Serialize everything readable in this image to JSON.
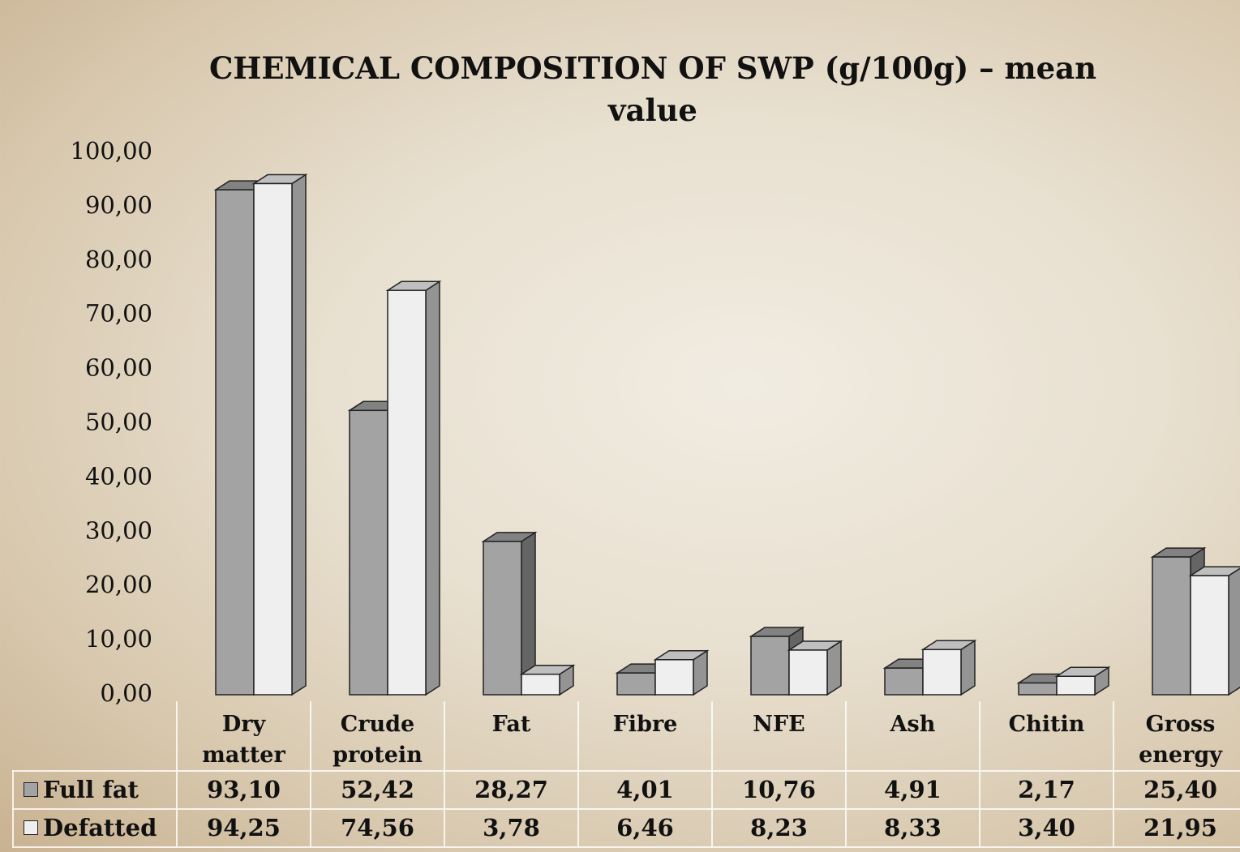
{
  "chart_data": {
    "type": "bar3d",
    "title": "CHEMICAL COMPOSITION OF SWP (g/100g) – mean value",
    "categories": [
      "Dry matter",
      "Crude protein",
      "Fat",
      "Fibre",
      "NFE",
      "Ash",
      "Chitin",
      "Gross energy"
    ],
    "series": [
      {
        "name": "Full fat",
        "color": "#a3a3a3",
        "values": [
          93.1,
          52.42,
          28.27,
          4.01,
          10.76,
          4.91,
          2.17,
          25.4
        ],
        "value_labels": [
          "93,10",
          "52,42",
          "28,27",
          "4,01",
          "10,76",
          "4,91",
          "2,17",
          "25,40"
        ]
      },
      {
        "name": "Defatted",
        "color": "#efefef",
        "values": [
          94.25,
          74.56,
          3.78,
          6.46,
          8.23,
          8.33,
          3.4,
          21.95
        ],
        "value_labels": [
          "94,25",
          "74,56",
          "3,78",
          "6,46",
          "8,23",
          "8,33",
          "3,40",
          "21,95"
        ]
      }
    ],
    "ylim": [
      0,
      100
    ],
    "yticks": [
      {
        "value": 0,
        "label": "0,00"
      },
      {
        "value": 10,
        "label": "10,00"
      },
      {
        "value": 20,
        "label": "20,00"
      },
      {
        "value": 30,
        "label": "30,00"
      },
      {
        "value": 40,
        "label": "40,00"
      },
      {
        "value": 50,
        "label": "50,00"
      },
      {
        "value": 60,
        "label": "60,00"
      },
      {
        "value": 70,
        "label": "70,00"
      },
      {
        "value": 80,
        "label": "80,00"
      },
      {
        "value": 90,
        "label": "90,00"
      },
      {
        "value": 100,
        "label": "100,00"
      }
    ]
  }
}
